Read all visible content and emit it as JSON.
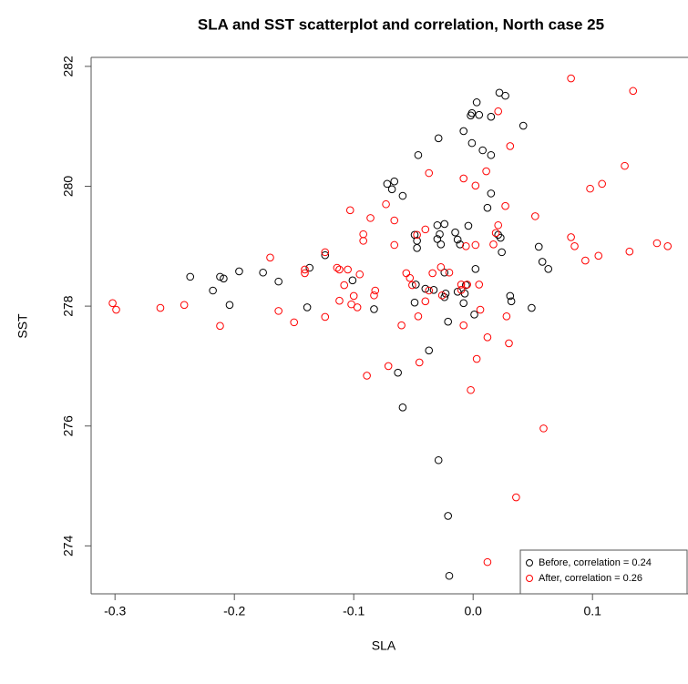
{
  "chart_data": {
    "type": "scatter",
    "title": "SLA and SST scatterplot and correlation, North case 25",
    "x_label": "SLA",
    "y_label": "SST",
    "xlim": [
      -0.32,
      0.18
    ],
    "ylim": [
      273.2,
      282.15
    ],
    "xticks": [
      -0.3,
      -0.2,
      -0.1,
      {
        "value": 0,
        "label": "0.0"
      },
      0.1
    ],
    "yticks": [
      274,
      276,
      278,
      280,
      282
    ],
    "legend": "bottom-right",
    "series": [
      {
        "name": "Before, correlation = 0.24",
        "color": "#000000",
        "x": [
          -0.237,
          -0.212,
          -0.209,
          -0.196,
          -0.218,
          -0.204,
          -0.176,
          -0.163,
          -0.137,
          -0.124,
          -0.101,
          -0.083,
          -0.139,
          -0.063,
          -0.059,
          -0.046,
          -0.029,
          -0.021,
          -0.02,
          -0.072,
          -0.066,
          -0.068,
          -0.059,
          -0.029,
          -0.027,
          -0.03,
          -0.024,
          -0.028,
          -0.03,
          -0.015,
          -0.013,
          -0.011,
          -0.004,
          0.002,
          -0.013,
          -0.007,
          -0.006,
          0.001,
          -0.049,
          -0.047,
          -0.047,
          -0.048,
          -0.049,
          -0.04,
          -0.033,
          -0.024,
          -0.023,
          -0.021,
          -0.008,
          -0.037,
          -0.024,
          -0.008,
          -0.002,
          -0.001,
          0.003,
          0.005,
          -0.001,
          0.008,
          0.015,
          0.015,
          0.022,
          0.027,
          0.042,
          0.015,
          0.012,
          0.021,
          0.023,
          0.024,
          0.055,
          0.058,
          0.063,
          0.031,
          0.032,
          0.049
        ],
        "values": [
          278.49,
          278.49,
          278.46,
          278.58,
          278.26,
          278.02,
          278.56,
          278.41,
          278.64,
          278.85,
          278.43,
          277.95,
          277.98,
          276.89,
          276.31,
          280.52,
          275.43,
          274.5,
          273.5,
          280.04,
          280.08,
          279.95,
          279.84,
          280.8,
          279.03,
          279.35,
          279.37,
          279.2,
          279.12,
          279.23,
          279.11,
          279.03,
          279.34,
          278.62,
          278.24,
          278.21,
          278.35,
          277.86,
          279.19,
          279.09,
          278.97,
          278.36,
          278.06,
          278.29,
          278.27,
          278.15,
          278.21,
          277.74,
          278.05,
          277.26,
          278.56,
          280.92,
          281.18,
          281.22,
          281.4,
          281.19,
          280.72,
          280.6,
          280.52,
          281.16,
          281.56,
          281.51,
          281.01,
          279.88,
          279.64,
          279.19,
          279.14,
          278.9,
          278.99,
          278.74,
          278.62,
          278.17,
          278.08,
          277.97
        ]
      },
      {
        "name": "After, correlation = 0.26",
        "color": "#ff0000",
        "x": [
          -0.302,
          -0.299,
          -0.262,
          -0.242,
          -0.212,
          -0.17,
          -0.163,
          -0.15,
          -0.141,
          -0.141,
          -0.124,
          -0.124,
          -0.114,
          -0.112,
          -0.112,
          -0.108,
          -0.105,
          -0.103,
          -0.1,
          -0.097,
          -0.095,
          -0.102,
          -0.092,
          -0.092,
          -0.086,
          -0.083,
          -0.082,
          -0.089,
          -0.071,
          -0.066,
          -0.066,
          -0.073,
          -0.06,
          -0.056,
          -0.053,
          -0.051,
          -0.047,
          -0.046,
          -0.045,
          -0.04,
          -0.037,
          -0.04,
          -0.037,
          -0.034,
          -0.026,
          -0.027,
          -0.02,
          -0.01,
          -0.01,
          -0.008,
          -0.008,
          -0.006,
          -0.005,
          -0.002,
          0.002,
          0.002,
          0.003,
          0.005,
          0.006,
          0.012,
          0.012,
          0.011,
          0.017,
          0.019,
          0.021,
          0.021,
          0.027,
          0.028,
          0.03,
          0.031,
          0.036,
          0.052,
          0.059,
          0.082,
          0.082,
          0.085,
          0.094,
          0.098,
          0.105,
          0.108,
          0.127,
          0.131,
          0.134,
          0.154,
          0.163
        ],
        "values": [
          278.05,
          277.94,
          277.97,
          278.02,
          277.67,
          278.81,
          277.92,
          277.73,
          278.61,
          278.55,
          278.9,
          277.82,
          278.64,
          278.61,
          278.09,
          278.35,
          278.61,
          279.6,
          278.17,
          277.98,
          278.53,
          278.03,
          279.2,
          279.09,
          279.47,
          278.18,
          278.26,
          276.84,
          277.0,
          279.02,
          279.43,
          279.7,
          277.68,
          278.55,
          278.47,
          278.35,
          279.19,
          277.83,
          277.06,
          278.08,
          280.22,
          279.28,
          278.26,
          278.55,
          278.18,
          278.65,
          278.56,
          278.36,
          278.27,
          277.68,
          280.13,
          279.0,
          278.36,
          276.6,
          280.01,
          279.02,
          277.12,
          278.36,
          277.94,
          277.48,
          273.73,
          280.25,
          279.03,
          279.22,
          279.35,
          281.25,
          279.67,
          277.83,
          277.38,
          280.67,
          274.81,
          279.5,
          275.96,
          281.8,
          279.15,
          279.0,
          278.76,
          279.96,
          278.84,
          280.04,
          280.34,
          278.91,
          281.59,
          279.05,
          279.0
        ]
      }
    ]
  }
}
